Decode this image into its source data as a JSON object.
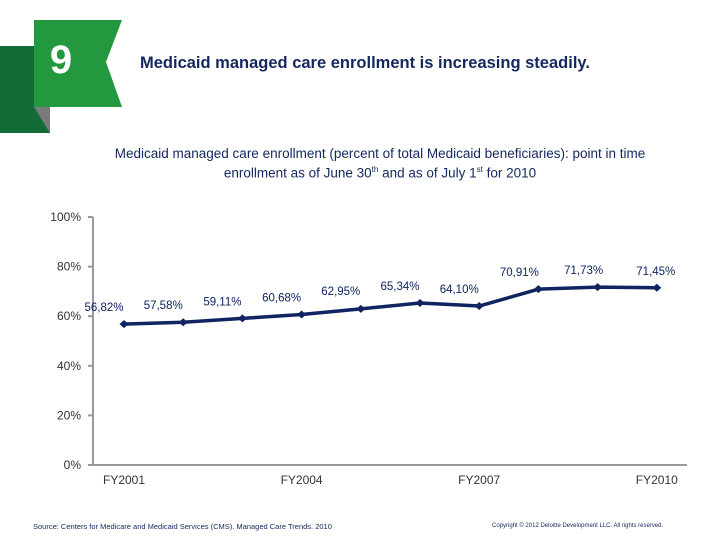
{
  "slide": {
    "number": "9",
    "headline": "Medicaid managed care enrollment is increasing steadily.",
    "colors": {
      "flag_green": "#23983f",
      "dark_green": "#136b36",
      "fold_gray": "#7a7a7a",
      "navy": "#0f2461",
      "axis_gray": "#9a9a9e"
    }
  },
  "subtitle": {
    "line1": "Medicaid managed care enrollment (percent of total Medicaid beneficiaries): point in time",
    "line2_pre": "enrollment as of June 30",
    "sup1": "th",
    "line2_mid": " and as of July 1",
    "sup2": "st",
    "line2_post": " for 2010"
  },
  "chart_data": {
    "type": "line",
    "title": "Medicaid managed care enrollment (percent of total Medicaid beneficiaries): point in time enrollment as of June 30th and as of July 1st for 2010",
    "xlabel": "",
    "ylabel": "",
    "x": [
      "FY2001",
      "FY2002",
      "FY2003",
      "FY2004",
      "FY2005",
      "FY2006",
      "FY2007",
      "FY2008",
      "FY2009",
      "FY2010"
    ],
    "x_tick_labels": [
      "FY2001",
      "FY2004",
      "FY2007",
      "FY2010"
    ],
    "series": [
      {
        "name": "Managed care enrollment",
        "values": [
          56.82,
          57.58,
          59.11,
          60.68,
          62.95,
          65.34,
          64.1,
          70.91,
          71.73,
          71.45
        ],
        "labels": [
          "56,82%",
          "57,58%",
          "59,11%",
          "60,68%",
          "62,95%",
          "65,34%",
          "64,10%",
          "70,91%",
          "71,73%",
          "71,45%"
        ]
      }
    ],
    "y_ticks": [
      "0%",
      "20%",
      "40%",
      "60%",
      "80%",
      "100%"
    ],
    "ylim": [
      0,
      100
    ],
    "grid": false,
    "legend": "none"
  },
  "footer": {
    "source": "Source: Centers for Medicare and Medicaid Services (CMS). Managed Care Trends. 2010",
    "copyright": "Copyright © 2012 Deloitte Development LLC. All rights reserved."
  }
}
